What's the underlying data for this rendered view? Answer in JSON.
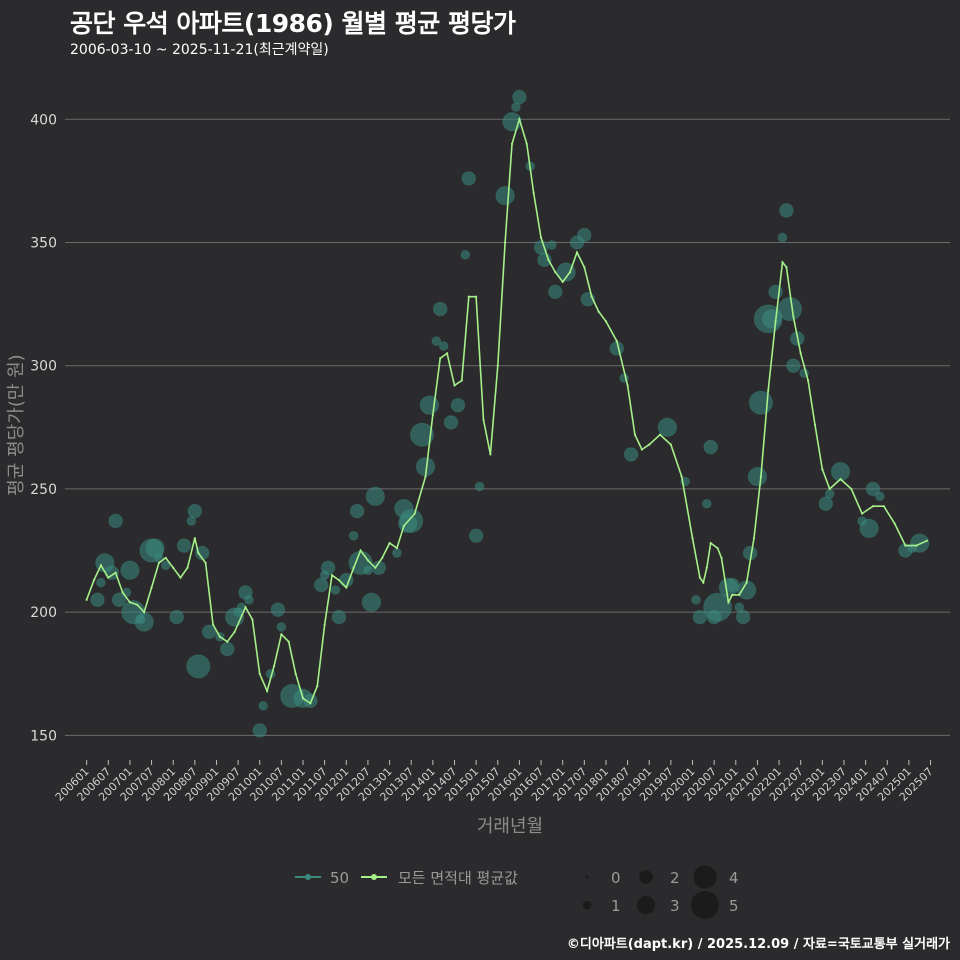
{
  "header": {
    "title": "공단 우석 아파트(1986) 월별 평균 평당가",
    "subtitle": "2006-03-10 ~ 2025-11-21(최근계약일)"
  },
  "footer": {
    "credit": "©디아파트(dapt.kr) / 2025.12.09 / 자료=국토교통부 실거래가"
  },
  "colors": {
    "background": "#2b2b2d",
    "grid": "#6b6b6b",
    "series_50": "#3a8a7f",
    "series_all": "#a6f08a",
    "size_legend": "#1a1a1a"
  },
  "chart_data": {
    "type": "scatter",
    "title": "공단 우석 아파트(1986) 월별 평균 평당가",
    "xlabel": "거래년월",
    "ylabel": "평균 평당가(만 원)",
    "ylim": [
      140,
      420
    ],
    "yticks": [
      150,
      200,
      250,
      300,
      350,
      400
    ],
    "xticks": [
      "200601",
      "200607",
      "200701",
      "200707",
      "200801",
      "200807",
      "200901",
      "200907",
      "201001",
      "201007",
      "201101",
      "201107",
      "201201",
      "201207",
      "201301",
      "201307",
      "201401",
      "201407",
      "201501",
      "201507",
      "201601",
      "201607",
      "201701",
      "201707",
      "201801",
      "201807",
      "201901",
      "201907",
      "202001",
      "202007",
      "202101",
      "202107",
      "202201",
      "202207",
      "202301",
      "202307",
      "202401",
      "202407",
      "202501",
      "202507"
    ],
    "grid": "horizontal",
    "legend": {
      "series_labels": [
        "50",
        "모든 면적대 평균값"
      ],
      "size_title": "",
      "size_values": [
        "0",
        "1",
        "2",
        "3",
        "4",
        "5"
      ],
      "placement": "bottom"
    },
    "series": [
      {
        "name": "50",
        "kind": "points",
        "points": [
          [
            2006.25,
            205,
            2
          ],
          [
            2006.33,
            212,
            1
          ],
          [
            2006.42,
            220,
            3
          ],
          [
            2006.58,
            216,
            2
          ],
          [
            2006.67,
            237,
            2
          ],
          [
            2006.75,
            205,
            2
          ],
          [
            2006.92,
            208,
            1
          ],
          [
            2007.0,
            217,
            3
          ],
          [
            2007.08,
            200,
            4
          ],
          [
            2007.25,
            197,
            1
          ],
          [
            2007.33,
            196,
            3
          ],
          [
            2007.5,
            225,
            4
          ],
          [
            2007.58,
            226,
            3
          ],
          [
            2007.67,
            222,
            1
          ],
          [
            2007.83,
            219,
            1
          ],
          [
            2008.08,
            198,
            2
          ],
          [
            2008.25,
            227,
            2
          ],
          [
            2008.42,
            237,
            1
          ],
          [
            2008.5,
            241,
            2
          ],
          [
            2008.58,
            178,
            4
          ],
          [
            2008.67,
            224,
            2
          ],
          [
            2008.83,
            192,
            2
          ],
          [
            2009.08,
            190,
            1
          ],
          [
            2009.25,
            185,
            2
          ],
          [
            2009.42,
            198,
            3
          ],
          [
            2009.5,
            200,
            1
          ],
          [
            2009.58,
            202,
            1
          ],
          [
            2009.67,
            208,
            2
          ],
          [
            2009.75,
            205,
            1
          ],
          [
            2010.0,
            152,
            2
          ],
          [
            2010.08,
            162,
            1
          ],
          [
            2010.25,
            175,
            1
          ],
          [
            2010.42,
            201,
            2
          ],
          [
            2010.5,
            194,
            1
          ],
          [
            2010.75,
            166,
            4
          ],
          [
            2011.0,
            165,
            3
          ],
          [
            2011.17,
            164,
            2
          ],
          [
            2011.42,
            211,
            2
          ],
          [
            2011.5,
            215,
            1
          ],
          [
            2011.58,
            218,
            2
          ],
          [
            2011.75,
            209,
            1
          ],
          [
            2011.83,
            198,
            2
          ],
          [
            2012.0,
            213,
            2
          ],
          [
            2012.17,
            231,
            1
          ],
          [
            2012.25,
            241,
            2
          ],
          [
            2012.33,
            220,
            4
          ],
          [
            2012.5,
            217,
            1
          ],
          [
            2012.58,
            204,
            3
          ],
          [
            2012.67,
            247,
            3
          ],
          [
            2012.75,
            218,
            2
          ],
          [
            2013.17,
            224,
            1
          ],
          [
            2013.33,
            242,
            3
          ],
          [
            2013.42,
            236,
            3
          ],
          [
            2013.5,
            237,
            4
          ],
          [
            2013.75,
            272,
            4
          ],
          [
            2013.83,
            259,
            3
          ],
          [
            2013.92,
            284,
            3
          ],
          [
            2014.08,
            310,
            1
          ],
          [
            2014.17,
            323,
            2
          ],
          [
            2014.25,
            308,
            1
          ],
          [
            2014.42,
            277,
            2
          ],
          [
            2014.58,
            284,
            2
          ],
          [
            2014.75,
            345,
            1
          ],
          [
            2014.83,
            376,
            2
          ],
          [
            2015.0,
            231,
            2
          ],
          [
            2015.08,
            251,
            1
          ],
          [
            2015.67,
            369,
            3
          ],
          [
            2015.83,
            399,
            3
          ],
          [
            2015.92,
            405,
            1
          ],
          [
            2016.0,
            409,
            2
          ],
          [
            2016.25,
            381,
            1
          ],
          [
            2016.5,
            348,
            2
          ],
          [
            2016.58,
            343,
            2
          ],
          [
            2016.75,
            349,
            1
          ],
          [
            2016.83,
            330,
            2
          ],
          [
            2017.08,
            338,
            3
          ],
          [
            2017.33,
            350,
            2
          ],
          [
            2017.5,
            353,
            2
          ],
          [
            2017.58,
            327,
            2
          ],
          [
            2018.25,
            307,
            2
          ],
          [
            2018.42,
            295,
            1
          ],
          [
            2018.58,
            264,
            2
          ],
          [
            2019.42,
            275,
            3
          ],
          [
            2019.83,
            253,
            1
          ],
          [
            2020.08,
            205,
            1
          ],
          [
            2020.17,
            198,
            2
          ],
          [
            2020.33,
            244,
            1
          ],
          [
            2020.42,
            267,
            2
          ],
          [
            2020.5,
            198,
            2
          ],
          [
            2020.58,
            202,
            5
          ],
          [
            2020.83,
            210,
            3
          ],
          [
            2020.92,
            211,
            2
          ],
          [
            2021.08,
            202,
            1
          ],
          [
            2021.17,
            198,
            2
          ],
          [
            2021.25,
            209,
            3
          ],
          [
            2021.33,
            224,
            2
          ],
          [
            2021.5,
            255,
            3
          ],
          [
            2021.58,
            285,
            4
          ],
          [
            2021.75,
            319,
            5
          ],
          [
            2021.83,
            319,
            3
          ],
          [
            2021.92,
            330,
            2
          ],
          [
            2022.08,
            352,
            1
          ],
          [
            2022.17,
            363,
            2
          ],
          [
            2022.25,
            323,
            4
          ],
          [
            2022.33,
            300,
            2
          ],
          [
            2022.42,
            311,
            2
          ],
          [
            2022.58,
            297,
            1
          ],
          [
            2023.08,
            244,
            2
          ],
          [
            2023.17,
            248,
            1
          ],
          [
            2023.42,
            257,
            3
          ],
          [
            2023.92,
            237,
            1
          ],
          [
            2024.08,
            234,
            3
          ],
          [
            2024.17,
            250,
            2
          ],
          [
            2024.33,
            247,
            1
          ],
          [
            2024.92,
            225,
            2
          ],
          [
            2025.08,
            226,
            1
          ],
          [
            2025.25,
            228,
            3
          ]
        ]
      },
      {
        "name": "모든 면적대 평균값",
        "kind": "line",
        "points": [
          [
            2006.0,
            205
          ],
          [
            2006.17,
            213
          ],
          [
            2006.33,
            219
          ],
          [
            2006.5,
            214
          ],
          [
            2006.67,
            216
          ],
          [
            2006.83,
            208
          ],
          [
            2007.0,
            204
          ],
          [
            2007.17,
            203
          ],
          [
            2007.33,
            200
          ],
          [
            2007.5,
            210
          ],
          [
            2007.67,
            220
          ],
          [
            2007.83,
            222
          ],
          [
            2008.0,
            218
          ],
          [
            2008.17,
            214
          ],
          [
            2008.33,
            218
          ],
          [
            2008.5,
            230
          ],
          [
            2008.58,
            224
          ],
          [
            2008.75,
            220
          ],
          [
            2008.92,
            195
          ],
          [
            2009.08,
            190
          ],
          [
            2009.25,
            188
          ],
          [
            2009.42,
            192
          ],
          [
            2009.67,
            202
          ],
          [
            2009.83,
            197
          ],
          [
            2010.0,
            175
          ],
          [
            2010.17,
            168
          ],
          [
            2010.33,
            178
          ],
          [
            2010.5,
            191
          ],
          [
            2010.67,
            188
          ],
          [
            2010.83,
            175
          ],
          [
            2011.0,
            165
          ],
          [
            2011.17,
            163
          ],
          [
            2011.33,
            170
          ],
          [
            2011.5,
            195
          ],
          [
            2011.67,
            215
          ],
          [
            2011.83,
            213
          ],
          [
            2012.0,
            210
          ],
          [
            2012.17,
            218
          ],
          [
            2012.33,
            225
          ],
          [
            2012.5,
            221
          ],
          [
            2012.67,
            218
          ],
          [
            2012.83,
            222
          ],
          [
            2013.0,
            228
          ],
          [
            2013.17,
            226
          ],
          [
            2013.33,
            235
          ],
          [
            2013.58,
            240
          ],
          [
            2013.83,
            255
          ],
          [
            2014.0,
            280
          ],
          [
            2014.17,
            303
          ],
          [
            2014.33,
            305
          ],
          [
            2014.5,
            292
          ],
          [
            2014.67,
            294
          ],
          [
            2014.83,
            328
          ],
          [
            2015.0,
            328
          ],
          [
            2015.17,
            278
          ],
          [
            2015.33,
            264
          ],
          [
            2015.5,
            300
          ],
          [
            2015.67,
            350
          ],
          [
            2015.83,
            390
          ],
          [
            2016.0,
            400
          ],
          [
            2016.17,
            390
          ],
          [
            2016.33,
            370
          ],
          [
            2016.5,
            352
          ],
          [
            2016.67,
            343
          ],
          [
            2016.83,
            338
          ],
          [
            2017.0,
            334
          ],
          [
            2017.17,
            338
          ],
          [
            2017.33,
            346
          ],
          [
            2017.5,
            340
          ],
          [
            2017.67,
            328
          ],
          [
            2017.83,
            322
          ],
          [
            2018.0,
            318
          ],
          [
            2018.25,
            310
          ],
          [
            2018.5,
            292
          ],
          [
            2018.67,
            272
          ],
          [
            2018.83,
            266
          ],
          [
            2019.0,
            268
          ],
          [
            2019.25,
            272
          ],
          [
            2019.5,
            268
          ],
          [
            2019.75,
            255
          ],
          [
            2020.0,
            230
          ],
          [
            2020.17,
            214
          ],
          [
            2020.25,
            212
          ],
          [
            2020.33,
            218
          ],
          [
            2020.42,
            228
          ],
          [
            2020.58,
            226
          ],
          [
            2020.67,
            222
          ],
          [
            2020.83,
            204
          ],
          [
            2020.92,
            207
          ],
          [
            2021.08,
            207
          ],
          [
            2021.25,
            212
          ],
          [
            2021.42,
            230
          ],
          [
            2021.58,
            255
          ],
          [
            2021.75,
            290
          ],
          [
            2021.92,
            318
          ],
          [
            2022.08,
            342
          ],
          [
            2022.17,
            340
          ],
          [
            2022.33,
            320
          ],
          [
            2022.5,
            305
          ],
          [
            2022.67,
            294
          ],
          [
            2022.83,
            276
          ],
          [
            2023.0,
            258
          ],
          [
            2023.17,
            250
          ],
          [
            2023.42,
            254
          ],
          [
            2023.67,
            250
          ],
          [
            2023.92,
            240
          ],
          [
            2024.17,
            243
          ],
          [
            2024.42,
            243
          ],
          [
            2024.67,
            236
          ],
          [
            2024.92,
            227
          ],
          [
            2025.17,
            227
          ],
          [
            2025.42,
            229
          ]
        ]
      }
    ]
  }
}
